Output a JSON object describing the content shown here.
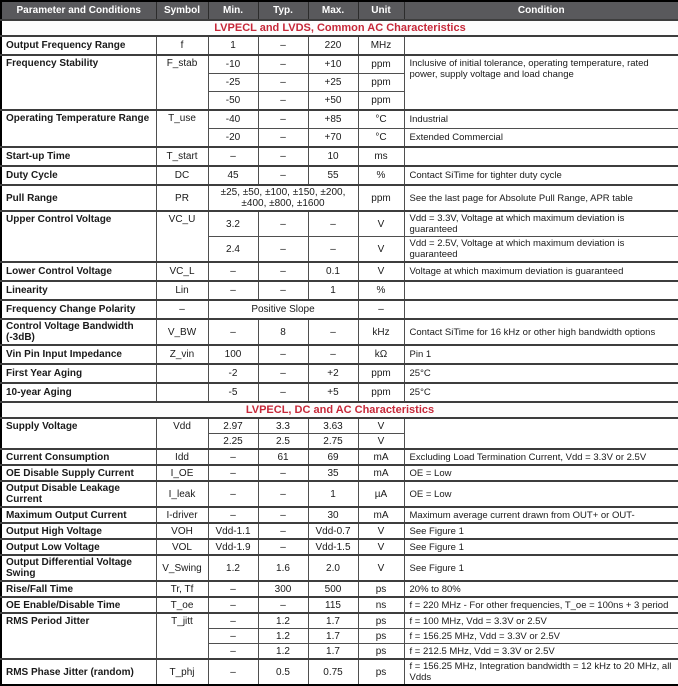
{
  "table": {
    "columns": [
      {
        "label": "Parameter and Conditions"
      },
      {
        "label": "Symbol"
      },
      {
        "label": "Min."
      },
      {
        "label": "Typ."
      },
      {
        "label": "Max."
      },
      {
        "label": "Unit"
      },
      {
        "label": "Condition"
      }
    ],
    "colors": {
      "header_bg": "#59595c",
      "header_text": "#ffffff",
      "section_title_red": "#c62839",
      "border_dark": "#3d3d3d",
      "border_light": "#a6a6a6"
    },
    "sections": [
      {
        "title": "LVPECL and LVDS, Common AC Characteristics",
        "rows": [
          {
            "cells": [
              {
                "t": "Output Frequency Range",
                "cls": "param"
              },
              {
                "t": "f",
                "cls": "sym"
              },
              {
                "t": "1"
              },
              {
                "t": "–"
              },
              {
                "t": "220"
              },
              {
                "t": "MHz"
              },
              {
                "t": "",
                "cls": "cond"
              }
            ]
          },
          {
            "cells": [
              {
                "t": "Frequency Stability",
                "cls": "param",
                "rs": 3
              },
              {
                "t": "F_stab",
                "cls": "sym",
                "rs": 3
              },
              {
                "t": "-10"
              },
              {
                "t": "–"
              },
              {
                "t": "+10"
              },
              {
                "t": "ppm"
              },
              {
                "t": "Inclusive of initial tolerance, operating temperature, rated power, supply voltage and load change",
                "cls": "cond",
                "rs": 3
              }
            ]
          },
          {
            "sub": true,
            "cells": [
              {
                "t": "-25"
              },
              {
                "t": "–"
              },
              {
                "t": "+25"
              },
              {
                "t": "ppm"
              }
            ]
          },
          {
            "sub": true,
            "cells": [
              {
                "t": "-50"
              },
              {
                "t": "–"
              },
              {
                "t": "+50"
              },
              {
                "t": "ppm"
              }
            ]
          },
          {
            "cells": [
              {
                "t": "Operating Temperature Range",
                "cls": "param",
                "rs": 2
              },
              {
                "t": "T_use",
                "cls": "sym",
                "rs": 2
              },
              {
                "t": "-40"
              },
              {
                "t": "–"
              },
              {
                "t": "+85"
              },
              {
                "t": "°C"
              },
              {
                "t": "Industrial",
                "cls": "cond"
              }
            ]
          },
          {
            "sub": true,
            "cells": [
              {
                "t": "-20"
              },
              {
                "t": "–"
              },
              {
                "t": "+70"
              },
              {
                "t": "°C"
              },
              {
                "t": "Extended Commercial",
                "cls": "cond"
              }
            ]
          },
          {
            "cells": [
              {
                "t": "Start-up Time",
                "cls": "param"
              },
              {
                "t": "T_start",
                "cls": "sym"
              },
              {
                "t": "–"
              },
              {
                "t": "–"
              },
              {
                "t": "10"
              },
              {
                "t": "ms"
              },
              {
                "t": "",
                "cls": "cond"
              }
            ]
          },
          {
            "cells": [
              {
                "t": "Duty Cycle",
                "cls": "param"
              },
              {
                "t": "DC",
                "cls": "sym"
              },
              {
                "t": "45"
              },
              {
                "t": "–"
              },
              {
                "t": "55"
              },
              {
                "t": "%"
              },
              {
                "t": "Contact SiTime for tighter duty cycle",
                "cls": "cond"
              }
            ]
          },
          {
            "cells": [
              {
                "t": "Pull Range",
                "cls": "param"
              },
              {
                "t": "PR",
                "cls": "sym"
              },
              {
                "t": "±25, ±50, ±100, ±150, ±200, ±400, ±800, ±1600",
                "cs": 3
              },
              {
                "t": "ppm"
              },
              {
                "t": "See the last page for Absolute Pull Range, APR table",
                "cls": "cond"
              }
            ]
          },
          {
            "cells": [
              {
                "t": "Upper Control Voltage",
                "cls": "param",
                "rs": 2
              },
              {
                "t": "VC_U",
                "cls": "sym",
                "rs": 2
              },
              {
                "t": "3.2"
              },
              {
                "t": "–"
              },
              {
                "t": "–"
              },
              {
                "t": "V"
              },
              {
                "t": "Vdd = 3.3V, Voltage at which maximum deviation is guaranteed",
                "cls": "cond"
              }
            ]
          },
          {
            "sub": true,
            "cells": [
              {
                "t": "2.4"
              },
              {
                "t": "–"
              },
              {
                "t": "–"
              },
              {
                "t": "V"
              },
              {
                "t": "Vdd = 2.5V, Voltage at which maximum deviation is guaranteed",
                "cls": "cond"
              }
            ]
          },
          {
            "cells": [
              {
                "t": "Lower Control Voltage",
                "cls": "param"
              },
              {
                "t": "VC_L",
                "cls": "sym"
              },
              {
                "t": "–"
              },
              {
                "t": "–"
              },
              {
                "t": "0.1"
              },
              {
                "t": "V"
              },
              {
                "t": "Voltage at which maximum deviation is guaranteed",
                "cls": "cond"
              }
            ]
          },
          {
            "cells": [
              {
                "t": "Linearity",
                "cls": "param"
              },
              {
                "t": "Lin",
                "cls": "sym"
              },
              {
                "t": "–"
              },
              {
                "t": "–"
              },
              {
                "t": "1"
              },
              {
                "t": "%"
              },
              {
                "t": "",
                "cls": "cond"
              }
            ]
          },
          {
            "cells": [
              {
                "t": "Frequency Change Polarity",
                "cls": "param"
              },
              {
                "t": "–",
                "cls": "sym"
              },
              {
                "t": "Positive Slope",
                "cs": 3
              },
              {
                "t": "–"
              },
              {
                "t": "",
                "cls": "cond"
              }
            ]
          },
          {
            "cells": [
              {
                "t": "Control Voltage Bandwidth (-3dB)",
                "cls": "param"
              },
              {
                "t": "V_BW",
                "cls": "sym"
              },
              {
                "t": "–"
              },
              {
                "t": "8"
              },
              {
                "t": "–"
              },
              {
                "t": "kHz"
              },
              {
                "t": "Contact SiTime for 16 kHz or other high bandwidth options",
                "cls": "cond"
              }
            ]
          },
          {
            "cells": [
              {
                "t": "Vin Pin Input Impedance",
                "cls": "param"
              },
              {
                "t": "Z_vin",
                "cls": "sym"
              },
              {
                "t": "100"
              },
              {
                "t": "–"
              },
              {
                "t": "–"
              },
              {
                "t": "kΩ"
              },
              {
                "t": "Pin 1",
                "cls": "cond"
              }
            ]
          },
          {
            "cells": [
              {
                "t": "First Year Aging",
                "cls": "param"
              },
              {
                "t": "",
                "cls": "sym"
              },
              {
                "t": "-2"
              },
              {
                "t": "–"
              },
              {
                "t": "+2"
              },
              {
                "t": "ppm"
              },
              {
                "t": "25°C",
                "cls": "cond"
              }
            ]
          },
          {
            "cells": [
              {
                "t": "10-year Aging",
                "cls": "param"
              },
              {
                "t": "",
                "cls": "sym"
              },
              {
                "t": "-5"
              },
              {
                "t": "–"
              },
              {
                "t": "+5"
              },
              {
                "t": "ppm"
              },
              {
                "t": "25°C",
                "cls": "cond"
              }
            ]
          }
        ]
      },
      {
        "title": "LVPECL, DC and AC Characteristics",
        "rows": [
          {
            "cells": [
              {
                "t": "Supply Voltage",
                "cls": "param",
                "rs": 2
              },
              {
                "t": "Vdd",
                "cls": "sym",
                "rs": 2
              },
              {
                "t": "2.97"
              },
              {
                "t": "3.3"
              },
              {
                "t": "3.63"
              },
              {
                "t": "V"
              },
              {
                "t": "",
                "cls": "cond",
                "rs": 2
              }
            ]
          },
          {
            "sub": true,
            "cells": [
              {
                "t": "2.25"
              },
              {
                "t": "2.5"
              },
              {
                "t": "2.75"
              },
              {
                "t": "V"
              }
            ]
          },
          {
            "cells": [
              {
                "t": "Current Consumption",
                "cls": "param"
              },
              {
                "t": "Idd",
                "cls": "sym"
              },
              {
                "t": "–"
              },
              {
                "t": "61"
              },
              {
                "t": "69"
              },
              {
                "t": "mA"
              },
              {
                "t": "Excluding Load Termination Current, Vdd = 3.3V or 2.5V",
                "cls": "cond"
              }
            ]
          },
          {
            "cells": [
              {
                "t": "OE Disable Supply Current",
                "cls": "param"
              },
              {
                "t": "I_OE",
                "cls": "sym"
              },
              {
                "t": "–"
              },
              {
                "t": "–"
              },
              {
                "t": "35"
              },
              {
                "t": "mA"
              },
              {
                "t": "OE = Low",
                "cls": "cond"
              }
            ]
          },
          {
            "cells": [
              {
                "t": "Output Disable Leakage Current",
                "cls": "param"
              },
              {
                "t": "I_leak",
                "cls": "sym"
              },
              {
                "t": "–"
              },
              {
                "t": "–"
              },
              {
                "t": "1"
              },
              {
                "t": "µA"
              },
              {
                "t": "OE = Low",
                "cls": "cond"
              }
            ]
          },
          {
            "cells": [
              {
                "t": "Maximum Output Current",
                "cls": "param"
              },
              {
                "t": "I-driver",
                "cls": "sym"
              },
              {
                "t": "–"
              },
              {
                "t": "–"
              },
              {
                "t": "30"
              },
              {
                "t": "mA"
              },
              {
                "t": "Maximum average current drawn from OUT+ or OUT-",
                "cls": "cond"
              }
            ]
          },
          {
            "cells": [
              {
                "t": "Output High Voltage",
                "cls": "param"
              },
              {
                "t": "VOH",
                "cls": "sym"
              },
              {
                "t": "Vdd-1.1"
              },
              {
                "t": "–"
              },
              {
                "t": "Vdd-0.7"
              },
              {
                "t": "V"
              },
              {
                "t": "See Figure 1",
                "cls": "cond"
              }
            ]
          },
          {
            "cells": [
              {
                "t": "Output Low Voltage",
                "cls": "param"
              },
              {
                "t": "VOL",
                "cls": "sym"
              },
              {
                "t": "Vdd-1.9"
              },
              {
                "t": "–"
              },
              {
                "t": "Vdd-1.5"
              },
              {
                "t": "V"
              },
              {
                "t": "See Figure 1",
                "cls": "cond"
              }
            ]
          },
          {
            "cells": [
              {
                "t": "Output Differential Voltage Swing",
                "cls": "param"
              },
              {
                "t": "V_Swing",
                "cls": "sym"
              },
              {
                "t": "1.2"
              },
              {
                "t": "1.6"
              },
              {
                "t": "2.0"
              },
              {
                "t": "V"
              },
              {
                "t": "See Figure 1",
                "cls": "cond"
              }
            ]
          },
          {
            "cells": [
              {
                "t": "Rise/Fall Time",
                "cls": "param"
              },
              {
                "t": "Tr, Tf",
                "cls": "sym"
              },
              {
                "t": "–"
              },
              {
                "t": "300"
              },
              {
                "t": "500"
              },
              {
                "t": "ps"
              },
              {
                "t": "20% to 80%",
                "cls": "cond"
              }
            ]
          },
          {
            "cells": [
              {
                "t": "OE Enable/Disable Time",
                "cls": "param"
              },
              {
                "t": "T_oe",
                "cls": "sym"
              },
              {
                "t": "–"
              },
              {
                "t": "–"
              },
              {
                "t": "115"
              },
              {
                "t": "ns"
              },
              {
                "t": "f = 220 MHz - For other frequencies, T_oe = 100ns + 3 period",
                "cls": "cond"
              }
            ]
          },
          {
            "cells": [
              {
                "t": "RMS Period Jitter",
                "cls": "param",
                "rs": 3
              },
              {
                "t": "T_jitt",
                "cls": "sym",
                "rs": 3
              },
              {
                "t": "–"
              },
              {
                "t": "1.2"
              },
              {
                "t": "1.7"
              },
              {
                "t": "ps"
              },
              {
                "t": "f = 100 MHz, Vdd = 3.3V or 2.5V",
                "cls": "cond"
              }
            ]
          },
          {
            "sub": true,
            "cells": [
              {
                "t": "–"
              },
              {
                "t": "1.2"
              },
              {
                "t": "1.7"
              },
              {
                "t": "ps"
              },
              {
                "t": "f = 156.25 MHz, Vdd = 3.3V or 2.5V",
                "cls": "cond"
              }
            ]
          },
          {
            "sub": true,
            "cells": [
              {
                "t": "–"
              },
              {
                "t": "1.2"
              },
              {
                "t": "1.7"
              },
              {
                "t": "ps"
              },
              {
                "t": "f = 212.5 MHz, Vdd = 3.3V or 2.5V",
                "cls": "cond"
              }
            ]
          },
          {
            "cells": [
              {
                "t": "RMS Phase Jitter (random)",
                "cls": "param"
              },
              {
                "t": "T_phj",
                "cls": "sym"
              },
              {
                "t": "–"
              },
              {
                "t": "0.5"
              },
              {
                "t": "0.75"
              },
              {
                "t": "ps"
              },
              {
                "t": "f = 156.25 MHz, Integration bandwidth = 12 kHz to 20 MHz, all Vdds",
                "cls": "cond"
              }
            ]
          }
        ]
      }
    ]
  }
}
